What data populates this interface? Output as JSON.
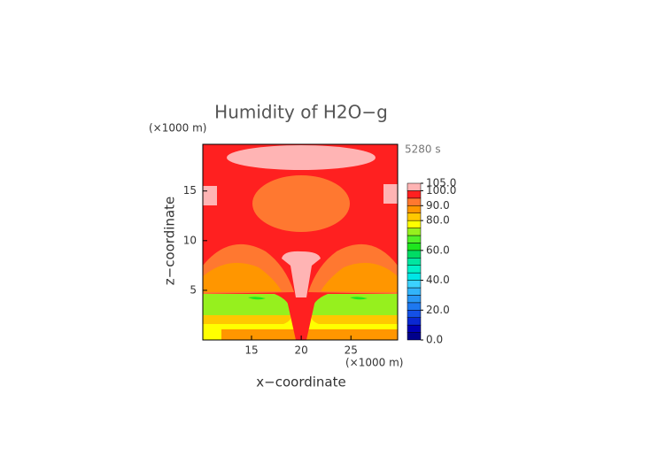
{
  "chart_data": {
    "type": "contour",
    "title": "Humidity of H2O−g",
    "x_label": "x−coordinate",
    "y_label": "z−coordinate",
    "x_unit": "(×1000 m)",
    "y_unit": "(×1000 m)",
    "time_label": "5280 s",
    "xlim": [
      10.1,
      29.7
    ],
    "ylim": [
      0,
      19.7
    ],
    "xticks": [
      15,
      20,
      25
    ],
    "yticks": [
      5,
      10,
      15
    ],
    "levels": [
      0,
      5,
      10,
      15,
      20,
      25,
      30,
      35,
      40,
      45,
      50,
      55,
      60,
      65,
      70,
      75,
      80,
      85,
      90,
      95,
      100,
      105
    ],
    "level_colors": [
      "#00008c",
      "#0000b4",
      "#0a28d2",
      "#1450e6",
      "#1e78f0",
      "#2896f5",
      "#32b4fa",
      "#3cd2ff",
      "#00e6e6",
      "#00f0c8",
      "#00e6a0",
      "#00dc64",
      "#1ee61e",
      "#50f028",
      "#96f01e",
      "#ffff00",
      "#ffc800",
      "#ff9600",
      "#ff7830",
      "#ff2020",
      "#ffb4b4"
    ],
    "colorbar_ticks": [
      {
        "value": 0,
        "label": "0.0"
      },
      {
        "value": 20,
        "label": "20.0"
      },
      {
        "value": 40,
        "label": "40.0"
      },
      {
        "value": 60,
        "label": "60.0"
      },
      {
        "value": 80,
        "label": "80.0"
      },
      {
        "value": 90,
        "label": "90.0"
      },
      {
        "value": 100,
        "label": "100.0"
      },
      {
        "value": 105,
        "label": "105.0"
      }
    ]
  }
}
